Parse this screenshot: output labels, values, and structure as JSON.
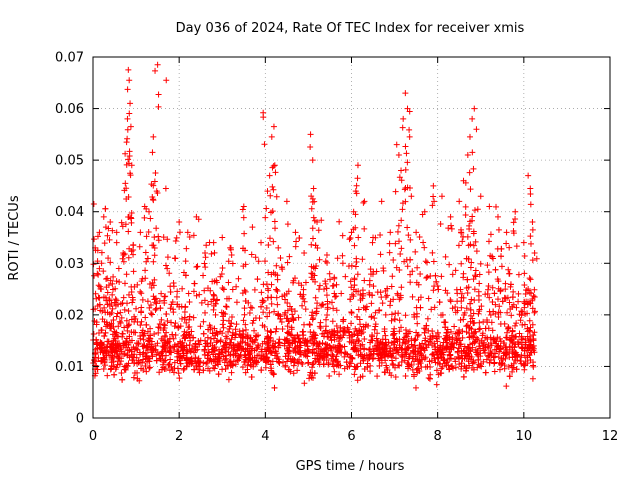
{
  "chart_data": {
    "type": "scatter",
    "title": "Day 036 of 2024, Rate Of TEC Index for receiver xmis",
    "xlabel": "GPS time / hours",
    "ylabel": "ROTI / TECUs",
    "xlim": [
      0,
      12
    ],
    "ylim": [
      0,
      0.07
    ],
    "xticks": [
      0,
      2,
      4,
      6,
      8,
      10,
      12
    ],
    "yticks": [
      0,
      0.01,
      0.02,
      0.03,
      0.04,
      0.05,
      0.06,
      0.07
    ],
    "xtick_labels": [
      "0",
      "2",
      "4",
      "6",
      "8",
      "10",
      "12"
    ],
    "ytick_labels": [
      "0",
      "0.01",
      "0.02",
      "0.03",
      "0.04",
      "0.05",
      "0.06",
      "0.07"
    ],
    "grid": true,
    "marker": "+",
    "color": "#ff0000",
    "series": [
      {
        "name": "ROTI",
        "x_range": [
          0,
          10.25
        ],
        "points": [
          [
            0.02,
            0.0415
          ],
          [
            0.05,
            0.033
          ],
          [
            0.1,
            0.028
          ],
          [
            0.15,
            0.036
          ],
          [
            0.2,
            0.03
          ],
          [
            0.25,
            0.039
          ],
          [
            0.3,
            0.037
          ],
          [
            0.35,
            0.031
          ],
          [
            0.4,
            0.038
          ],
          [
            0.45,
            0.026
          ],
          [
            0.55,
            0.036
          ],
          [
            0.6,
            0.029
          ],
          [
            0.7,
            0.032
          ],
          [
            0.75,
            0.0455
          ],
          [
            0.78,
            0.0535
          ],
          [
            0.8,
            0.058
          ],
          [
            0.82,
            0.0675
          ],
          [
            0.84,
            0.0655
          ],
          [
            0.86,
            0.061
          ],
          [
            0.88,
            0.0565
          ],
          [
            0.9,
            0.049
          ],
          [
            1.1,
            0.036
          ],
          [
            1.2,
            0.041
          ],
          [
            1.3,
            0.04
          ],
          [
            1.38,
            0.0515
          ],
          [
            1.4,
            0.0545
          ],
          [
            1.45,
            0.0475
          ],
          [
            1.48,
            0.044
          ],
          [
            1.5,
            0.0685
          ],
          [
            1.7,
            0.0655
          ],
          [
            1.9,
            0.031
          ],
          [
            2.0,
            0.038
          ],
          [
            2.2,
            0.036
          ],
          [
            2.4,
            0.039
          ],
          [
            2.6,
            0.032
          ],
          [
            2.8,
            0.034
          ],
          [
            3.0,
            0.035
          ],
          [
            3.2,
            0.033
          ],
          [
            3.5,
            0.041
          ],
          [
            3.7,
            0.037
          ],
          [
            3.9,
            0.034
          ],
          [
            3.95,
            0.0592
          ],
          [
            4.05,
            0.044
          ],
          [
            4.1,
            0.047
          ],
          [
            4.15,
            0.0545
          ],
          [
            4.2,
            0.0565
          ],
          [
            4.22,
            0.049
          ],
          [
            4.3,
            0.033
          ],
          [
            4.5,
            0.042
          ],
          [
            4.7,
            0.036
          ],
          [
            4.9,
            0.032
          ],
          [
            5.05,
            0.055
          ],
          [
            5.1,
            0.05
          ],
          [
            5.12,
            0.0445
          ],
          [
            5.2,
            0.038
          ],
          [
            5.4,
            0.026
          ],
          [
            5.6,
            0.027
          ],
          [
            5.8,
            0.03
          ],
          [
            6.0,
            0.036
          ],
          [
            6.05,
            0.04
          ],
          [
            6.1,
            0.044
          ],
          [
            6.15,
            0.049
          ],
          [
            6.3,
            0.042
          ],
          [
            6.5,
            0.035
          ],
          [
            6.7,
            0.042
          ],
          [
            6.9,
            0.036
          ],
          [
            7.05,
            0.053
          ],
          [
            7.1,
            0.051
          ],
          [
            7.15,
            0.048
          ],
          [
            7.2,
            0.058
          ],
          [
            7.25,
            0.063
          ],
          [
            7.3,
            0.06
          ],
          [
            7.35,
            0.0545
          ],
          [
            7.5,
            0.036
          ],
          [
            7.7,
            0.04
          ],
          [
            7.9,
            0.045
          ],
          [
            8.1,
            0.043
          ],
          [
            8.3,
            0.039
          ],
          [
            8.5,
            0.042
          ],
          [
            8.6,
            0.046
          ],
          [
            8.7,
            0.051
          ],
          [
            8.75,
            0.0545
          ],
          [
            8.8,
            0.058
          ],
          [
            8.85,
            0.06
          ],
          [
            8.9,
            0.056
          ],
          [
            9.0,
            0.043
          ],
          [
            9.2,
            0.041
          ],
          [
            9.4,
            0.039
          ],
          [
            9.6,
            0.036
          ],
          [
            9.8,
            0.04
          ],
          [
            10.0,
            0.034
          ],
          [
            10.1,
            0.047
          ],
          [
            10.15,
            0.0445
          ],
          [
            10.2,
            0.038
          ],
          [
            10.25,
            0.032
          ]
        ],
        "dense_band": {
          "description": "bulk of points",
          "y_min": 0.003,
          "y_max": 0.032,
          "typical": 0.013
        }
      }
    ]
  }
}
